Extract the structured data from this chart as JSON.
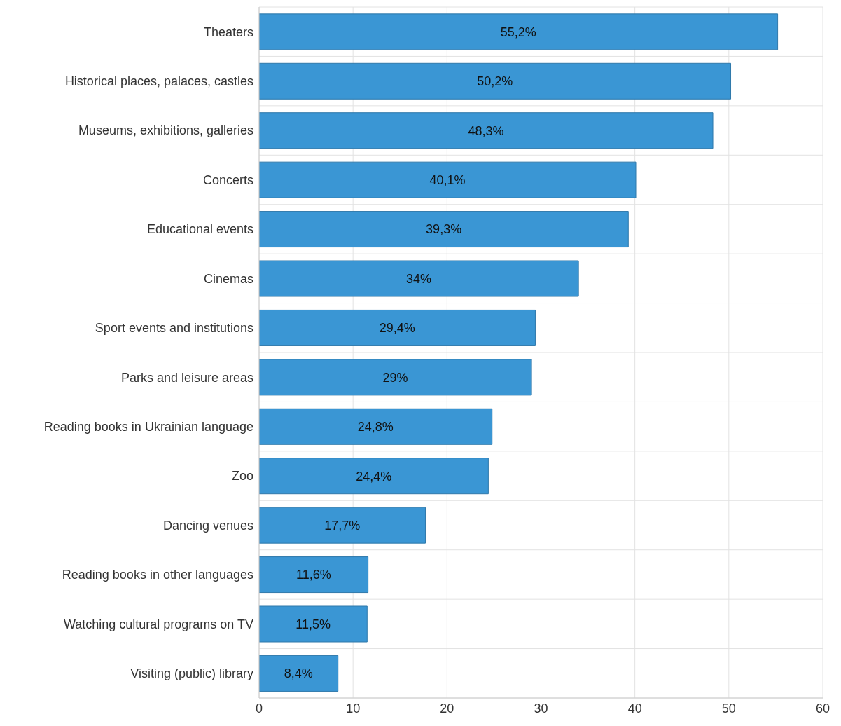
{
  "chart_data": {
    "type": "bar",
    "orientation": "horizontal",
    "categories": [
      "Theaters",
      "Historical places, palaces, castles",
      "Museums, exhibitions, galleries",
      "Concerts",
      "Educational events",
      "Cinemas",
      "Sport events and institutions",
      "Parks and leisure areas",
      "Reading books in Ukrainian language",
      "Zoo",
      "Dancing venues",
      "Reading books in other languages",
      "Watching cultural programs on TV",
      "Visiting (public) library"
    ],
    "values": [
      55.2,
      50.2,
      48.3,
      40.1,
      39.3,
      34,
      29.4,
      29,
      24.8,
      24.4,
      17.7,
      11.6,
      11.5,
      8.4
    ],
    "value_labels": [
      "55,2%",
      "50,2%",
      "48,3%",
      "40,1%",
      "39,3%",
      "34%",
      "29,4%",
      "29%",
      "24,8%",
      "24,4%",
      "17,7%",
      "11,6%",
      "11,5%",
      "8,4%"
    ],
    "color": "#3a96d4",
    "xlim": [
      0,
      60
    ],
    "xticks": [
      0,
      10,
      20,
      30,
      40,
      50,
      60
    ],
    "grid": true
  }
}
